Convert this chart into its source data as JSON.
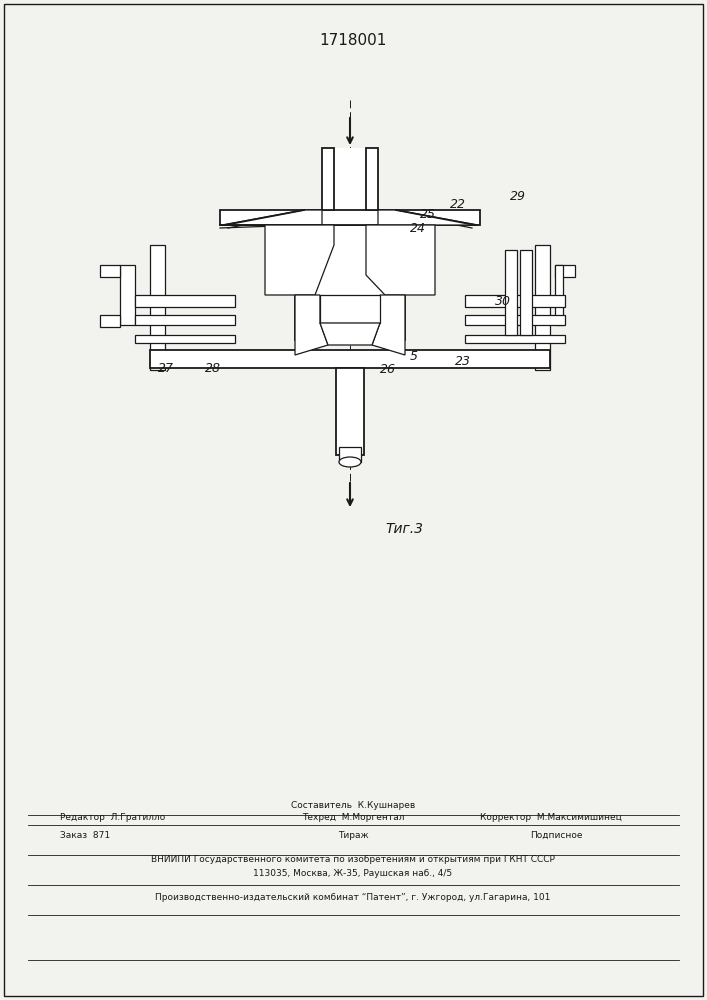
{
  "patent_number": "1718001",
  "figure_label": "Τиг.3",
  "background_color": "#f2f2ee",
  "footer_vnipi": "ВНИИПИ Государственного комитета по изобретениям и открытиям при ГКНТ СССР",
  "footer_address": "113035, Москва, Ж-35, Раушская наб., 4/5",
  "footer_publisher": "Производственно-издательский комбинат “Патент”, г. Ужгород, ул.Гагарина, 101"
}
